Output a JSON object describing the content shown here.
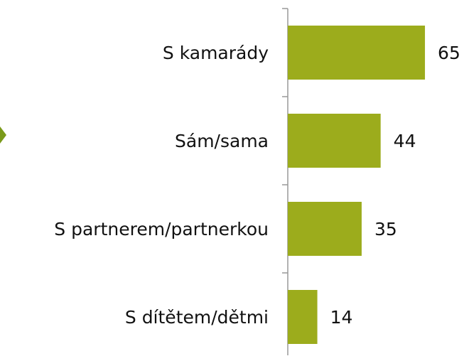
{
  "chart_data": {
    "type": "bar",
    "orientation": "horizontal",
    "categories": [
      "S kamarády",
      "Sám/sama",
      "S partnerem/partnerkou",
      "S dítětem/dětmi"
    ],
    "values": [
      65,
      44,
      35,
      14
    ],
    "color": "#9cac1c"
  }
}
